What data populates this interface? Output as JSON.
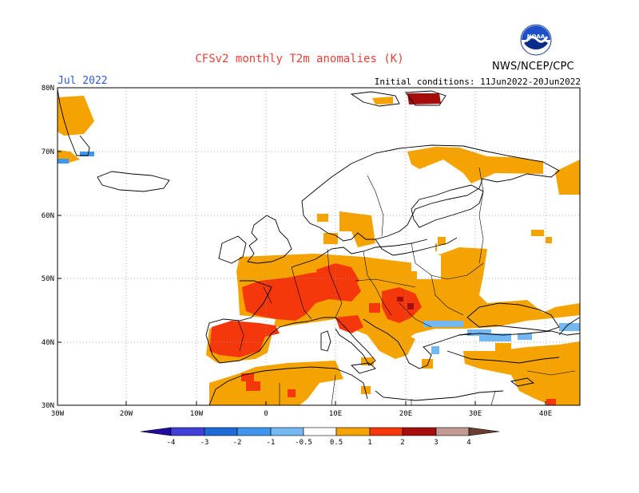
{
  "title": "CFSv2 monthly T2m anomalies (K)",
  "month": "Jul 2022",
  "initial_conditions": "Initial conditions: 11Jun2022-20Jun2022",
  "agency": "NWS/NCEP/CPC",
  "logo_text": "NOAA",
  "map": {
    "region": "Europe",
    "lon_range": [
      -30,
      45
    ],
    "lat_range": [
      30,
      80
    ],
    "lon_labels": [
      "30W",
      "20W",
      "10W",
      "0",
      "10E",
      "20E",
      "30E",
      "40E"
    ],
    "lat_labels": [
      "30N",
      "40N",
      "50N",
      "60N",
      "70N",
      "80N"
    ],
    "grid": "dotted"
  },
  "colorbar": {
    "labels": [
      "-4",
      "-3",
      "-2",
      "-1",
      "-0.5",
      "0.5",
      "1",
      "2",
      "3",
      "4"
    ],
    "colors": [
      "#1f0aa0",
      "#4040d8",
      "#1d6bd6",
      "#3f96ec",
      "#74b8f2",
      "#ffffff",
      "#f5a300",
      "#f5380c",
      "#a50d0d",
      "#c19a92",
      "#6a3d30"
    ]
  }
}
